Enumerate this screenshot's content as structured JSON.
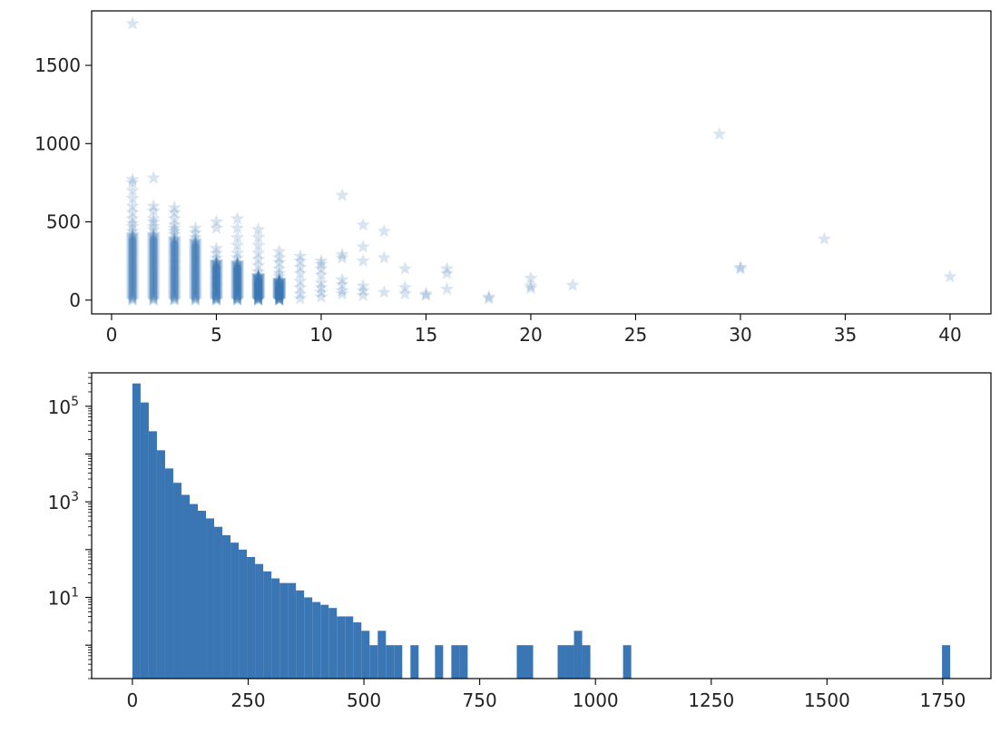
{
  "chart_data": [
    {
      "type": "scatter",
      "title": "",
      "xlabel": "",
      "ylabel": "",
      "xlim": [
        -0.95,
        41.95
      ],
      "ylim": [
        -88,
        1848
      ],
      "xticks": [
        0,
        5,
        10,
        15,
        20,
        25,
        30,
        35,
        40
      ],
      "yticks": [
        0,
        500,
        1000,
        1500
      ],
      "marker": "star",
      "color": "#3a76b3",
      "alpha": 0.2,
      "grid": false,
      "legend": "none",
      "points": [
        {
          "x": 1,
          "y": 1766
        },
        {
          "x": 1,
          "y": 770
        },
        {
          "x": 1,
          "y": 750
        },
        {
          "x": 1,
          "y": 700
        },
        {
          "x": 1,
          "y": 650
        },
        {
          "x": 1,
          "y": 600
        },
        {
          "x": 1,
          "y": 560
        },
        {
          "x": 1,
          "y": 520
        },
        {
          "x": 1,
          "y": 490
        },
        {
          "x": 1,
          "y": 470
        },
        {
          "x": 1,
          "y": 440
        },
        {
          "x": 2,
          "y": 780
        },
        {
          "x": 2,
          "y": 600
        },
        {
          "x": 2,
          "y": 570
        },
        {
          "x": 2,
          "y": 520
        },
        {
          "x": 2,
          "y": 500
        },
        {
          "x": 2,
          "y": 470
        },
        {
          "x": 2,
          "y": 450
        },
        {
          "x": 3,
          "y": 590
        },
        {
          "x": 3,
          "y": 560
        },
        {
          "x": 3,
          "y": 520
        },
        {
          "x": 3,
          "y": 480
        },
        {
          "x": 3,
          "y": 460
        },
        {
          "x": 3,
          "y": 440
        },
        {
          "x": 3,
          "y": 420
        },
        {
          "x": 4,
          "y": 460
        },
        {
          "x": 4,
          "y": 430
        },
        {
          "x": 4,
          "y": 400
        },
        {
          "x": 4,
          "y": 380
        },
        {
          "x": 5,
          "y": 500
        },
        {
          "x": 5,
          "y": 460
        },
        {
          "x": 5,
          "y": 330
        },
        {
          "x": 5,
          "y": 300
        },
        {
          "x": 5,
          "y": 270
        },
        {
          "x": 6,
          "y": 520
        },
        {
          "x": 6,
          "y": 460
        },
        {
          "x": 6,
          "y": 400
        },
        {
          "x": 6,
          "y": 350
        },
        {
          "x": 6,
          "y": 300
        },
        {
          "x": 6,
          "y": 270
        },
        {
          "x": 7,
          "y": 450
        },
        {
          "x": 7,
          "y": 400
        },
        {
          "x": 7,
          "y": 350
        },
        {
          "x": 7,
          "y": 300
        },
        {
          "x": 7,
          "y": 260
        },
        {
          "x": 7,
          "y": 220
        },
        {
          "x": 7,
          "y": 180
        },
        {
          "x": 8,
          "y": 310
        },
        {
          "x": 8,
          "y": 270
        },
        {
          "x": 8,
          "y": 240
        },
        {
          "x": 8,
          "y": 200
        },
        {
          "x": 8,
          "y": 170
        },
        {
          "x": 8,
          "y": 150
        },
        {
          "x": 9,
          "y": 280
        },
        {
          "x": 9,
          "y": 250
        },
        {
          "x": 9,
          "y": 210
        },
        {
          "x": 9,
          "y": 170
        },
        {
          "x": 9,
          "y": 120
        },
        {
          "x": 9,
          "y": 80
        },
        {
          "x": 9,
          "y": 40
        },
        {
          "x": 9,
          "y": 10
        },
        {
          "x": 10,
          "y": 250
        },
        {
          "x": 10,
          "y": 230
        },
        {
          "x": 10,
          "y": 200
        },
        {
          "x": 10,
          "y": 160
        },
        {
          "x": 10,
          "y": 110
        },
        {
          "x": 10,
          "y": 80
        },
        {
          "x": 10,
          "y": 50
        },
        {
          "x": 10,
          "y": 20
        },
        {
          "x": 11,
          "y": 670
        },
        {
          "x": 11,
          "y": 290
        },
        {
          "x": 11,
          "y": 270
        },
        {
          "x": 11,
          "y": 130
        },
        {
          "x": 11,
          "y": 100
        },
        {
          "x": 11,
          "y": 60
        },
        {
          "x": 11,
          "y": 40
        },
        {
          "x": 12,
          "y": 480
        },
        {
          "x": 12,
          "y": 340
        },
        {
          "x": 12,
          "y": 250
        },
        {
          "x": 12,
          "y": 90
        },
        {
          "x": 12,
          "y": 60
        },
        {
          "x": 12,
          "y": 30
        },
        {
          "x": 13,
          "y": 440
        },
        {
          "x": 13,
          "y": 270
        },
        {
          "x": 13,
          "y": 50
        },
        {
          "x": 14,
          "y": 200
        },
        {
          "x": 14,
          "y": 80
        },
        {
          "x": 14,
          "y": 40
        },
        {
          "x": 15,
          "y": 40
        },
        {
          "x": 15,
          "y": 30
        },
        {
          "x": 16,
          "y": 200
        },
        {
          "x": 16,
          "y": 170
        },
        {
          "x": 16,
          "y": 70
        },
        {
          "x": 18,
          "y": 20
        },
        {
          "x": 18,
          "y": 10
        },
        {
          "x": 20,
          "y": 140
        },
        {
          "x": 20,
          "y": 90
        },
        {
          "x": 20,
          "y": 75
        },
        {
          "x": 22,
          "y": 95
        },
        {
          "x": 29,
          "y": 1060
        },
        {
          "x": 30,
          "y": 210
        },
        {
          "x": 30,
          "y": 200
        },
        {
          "x": 34,
          "y": 390
        },
        {
          "x": 40,
          "y": 150
        }
      ],
      "dense_columns": [
        {
          "x": 1,
          "y_min": 0,
          "y_max": 420
        },
        {
          "x": 2,
          "y_min": 0,
          "y_max": 420
        },
        {
          "x": 3,
          "y_min": 0,
          "y_max": 400
        },
        {
          "x": 4,
          "y_min": 0,
          "y_max": 380
        },
        {
          "x": 5,
          "y_min": 0,
          "y_max": 250
        },
        {
          "x": 6,
          "y_min": 0,
          "y_max": 240
        },
        {
          "x": 7,
          "y_min": 0,
          "y_max": 160
        },
        {
          "x": 8,
          "y_min": 0,
          "y_max": 130
        }
      ]
    },
    {
      "type": "bar",
      "subtype": "histogram",
      "title": "",
      "xlabel": "",
      "ylabel": "",
      "yscale": "log",
      "xlim": [
        -88,
        1854
      ],
      "ylim": [
        0.2,
        500000
      ],
      "xticks": [
        0,
        250,
        500,
        750,
        1000,
        1250,
        1500,
        1750
      ],
      "yticks": [
        {
          "value": 10,
          "base": "10",
          "exp": "1"
        },
        {
          "value": 1000,
          "base": "10",
          "exp": "3"
        },
        {
          "value": 100000,
          "base": "10",
          "exp": "5"
        }
      ],
      "color": "#3a76b3",
      "grid": false,
      "legend": "none",
      "bin_start": 0,
      "bin_width": 17.66,
      "counts": [
        300000,
        120000,
        30000,
        12000,
        5000,
        2500,
        1400,
        900,
        650,
        450,
        300,
        200,
        140,
        100,
        70,
        50,
        35,
        25,
        20,
        20,
        14,
        10,
        8,
        7,
        6,
        4,
        4,
        3,
        2,
        1,
        2,
        1,
        1,
        0,
        1,
        0,
        0,
        1,
        0,
        1,
        1,
        0,
        0,
        0,
        0,
        0,
        0,
        1,
        1,
        0,
        0,
        0,
        1,
        1,
        2,
        1,
        0,
        0,
        0,
        0,
        1,
        0,
        0,
        0,
        0,
        0,
        0,
        0,
        0,
        0,
        0,
        0,
        0,
        0,
        0,
        0,
        0,
        0,
        0,
        0,
        0,
        0,
        0,
        0,
        0,
        0,
        0,
        0,
        0,
        0,
        0,
        0,
        0,
        0,
        0,
        0,
        0,
        0,
        0,
        1
      ]
    }
  ]
}
